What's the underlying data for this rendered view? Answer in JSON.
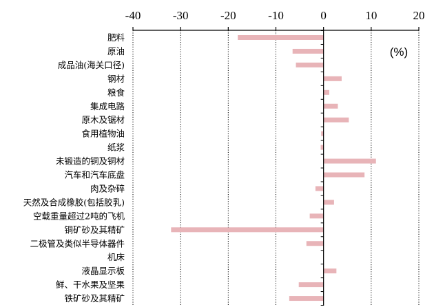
{
  "chart_data": {
    "type": "bar",
    "orientation": "horizontal",
    "unit_label": "(%)",
    "xlim": [
      -40,
      20
    ],
    "x_ticks": [
      "-40",
      "-30",
      "-20",
      "-10",
      "0",
      "10",
      "20"
    ],
    "x_tick_values": [
      -40,
      -30,
      -20,
      -10,
      0,
      10,
      20
    ],
    "axis_position": "top",
    "grid": "vertical dotted",
    "bar_color": "#e8b4b8",
    "categories": [
      "肥料",
      "原油",
      "成品油(海关口径)",
      "钢材",
      "粮食",
      "集成电路",
      "原木及锯材",
      "食用植物油",
      "纸浆",
      "未锻造的铜及铜材",
      "汽车和汽车底盘",
      "肉及杂碎",
      "天然及合成橡胶(包括胶乳)",
      "空载重量超过2吨的飞机",
      "铜矿砂及其精矿",
      "二极管及类似半导体器件",
      "机床",
      "液晶显示板",
      "鲜、干水果及坚果",
      "铁矿砂及其精矿"
    ],
    "values": [
      -18,
      -6.5,
      -5.8,
      3.8,
      1.2,
      3,
      5.3,
      -0.5,
      -0.6,
      11,
      8.6,
      -1.7,
      2.2,
      -2.9,
      -32,
      -3.6,
      0,
      2.7,
      -5.2,
      -7.2
    ]
  }
}
